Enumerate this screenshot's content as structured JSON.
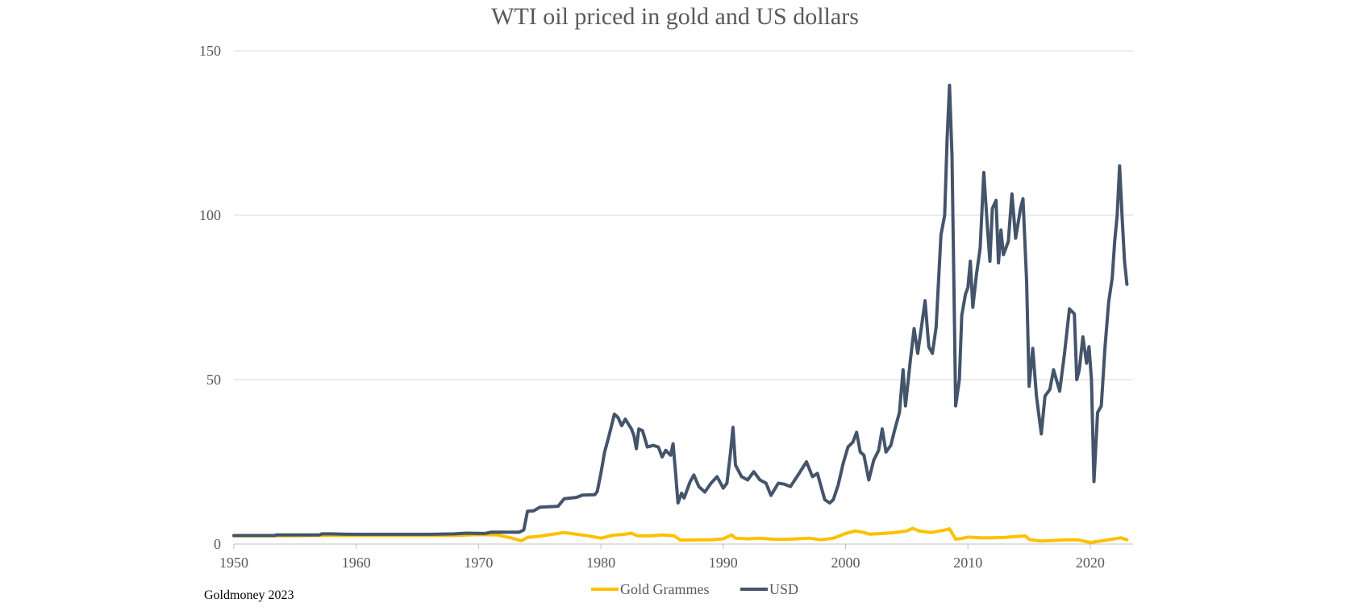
{
  "colors": {
    "usd": "#44546a",
    "gold": "#ffc000",
    "grid": "#d9d9d9",
    "text": "#595959"
  },
  "source_note": "Goldmoney 2023",
  "chart_data": {
    "type": "line",
    "title": "WTI oil priced in gold and US dollars",
    "xlabel": "",
    "ylabel": "",
    "xlim": [
      1950,
      2023.5
    ],
    "ylim": [
      0,
      150
    ],
    "x_ticks": [
      "1950",
      "1960",
      "1970",
      "1980",
      "1990",
      "2000",
      "2010",
      "2020"
    ],
    "y_ticks": [
      "0",
      "50",
      "100",
      "150"
    ],
    "grid": true,
    "legend": {
      "position": "bottom",
      "entries": [
        "Gold Grammes",
        "USD"
      ]
    },
    "series": [
      {
        "name": "Gold Grammes",
        "color": "#ffc000",
        "points": [
          [
            1950,
            2.5
          ],
          [
            1953.5,
            2.5
          ],
          [
            1957,
            2.6
          ],
          [
            1960,
            2.6
          ],
          [
            1965,
            2.6
          ],
          [
            1968,
            2.6
          ],
          [
            1970,
            2.9
          ],
          [
            1971.5,
            2.8
          ],
          [
            1972.5,
            2.0
          ],
          [
            1973.5,
            1.0
          ],
          [
            1974,
            2.0
          ],
          [
            1975,
            2.4
          ],
          [
            1976.5,
            3.2
          ],
          [
            1977,
            3.5
          ],
          [
            1978,
            3.0
          ],
          [
            1979,
            2.5
          ],
          [
            1980,
            1.8
          ],
          [
            1981,
            2.7
          ],
          [
            1982,
            3.0
          ],
          [
            1982.5,
            3.3
          ],
          [
            1983,
            2.5
          ],
          [
            1984,
            2.5
          ],
          [
            1985,
            2.8
          ],
          [
            1986,
            2.5
          ],
          [
            1986.5,
            1.2
          ],
          [
            1988,
            1.3
          ],
          [
            1989,
            1.3
          ],
          [
            1990,
            1.6
          ],
          [
            1990.7,
            2.8
          ],
          [
            1991,
            1.8
          ],
          [
            1992,
            1.6
          ],
          [
            1993,
            1.8
          ],
          [
            1994,
            1.5
          ],
          [
            1995,
            1.4
          ],
          [
            1996,
            1.6
          ],
          [
            1997,
            1.8
          ],
          [
            1998,
            1.3
          ],
          [
            1999,
            1.8
          ],
          [
            2000,
            3.2
          ],
          [
            2000.8,
            4.0
          ],
          [
            2001.5,
            3.5
          ],
          [
            2002,
            3.0
          ],
          [
            2003,
            3.2
          ],
          [
            2004,
            3.5
          ],
          [
            2005,
            4.0
          ],
          [
            2005.5,
            4.8
          ],
          [
            2006,
            4.0
          ],
          [
            2007,
            3.5
          ],
          [
            2008,
            4.2
          ],
          [
            2008.5,
            4.6
          ],
          [
            2009,
            1.5
          ],
          [
            2009.5,
            1.7
          ],
          [
            2010,
            2.1
          ],
          [
            2011,
            1.9
          ],
          [
            2012,
            1.9
          ],
          [
            2013,
            2.0
          ],
          [
            2014,
            2.3
          ],
          [
            2014.7,
            2.5
          ],
          [
            2015,
            1.4
          ],
          [
            2016,
            0.9
          ],
          [
            2017,
            1.1
          ],
          [
            2018,
            1.3
          ],
          [
            2019,
            1.3
          ],
          [
            2020,
            0.5
          ],
          [
            2021,
            1.0
          ],
          [
            2022,
            1.6
          ],
          [
            2022.5,
            1.9
          ],
          [
            2023,
            1.3
          ]
        ]
      },
      {
        "name": "USD",
        "color": "#44546a",
        "points": [
          [
            1950,
            2.6
          ],
          [
            1953.3,
            2.6
          ],
          [
            1953.5,
            2.8
          ],
          [
            1957,
            2.8
          ],
          [
            1957.2,
            3.1
          ],
          [
            1958,
            3.1
          ],
          [
            1959,
            3.0
          ],
          [
            1960,
            2.97
          ],
          [
            1966,
            2.97
          ],
          [
            1968,
            3.1
          ],
          [
            1969,
            3.3
          ],
          [
            1970.5,
            3.2
          ],
          [
            1971,
            3.6
          ],
          [
            1973.3,
            3.6
          ],
          [
            1973.7,
            4.3
          ],
          [
            1974,
            10.0
          ],
          [
            1974.5,
            10.1
          ],
          [
            1975,
            11.2
          ],
          [
            1976.5,
            11.5
          ],
          [
            1977,
            13.8
          ],
          [
            1978,
            14.2
          ],
          [
            1978.5,
            14.9
          ],
          [
            1979.5,
            15.0
          ],
          [
            1979.7,
            16.0
          ],
          [
            1980,
            21.5
          ],
          [
            1980.3,
            28.0
          ],
          [
            1980.6,
            32.0
          ],
          [
            1980.9,
            36.5
          ],
          [
            1981.1,
            39.5
          ],
          [
            1981.4,
            38.5
          ],
          [
            1981.7,
            36.0
          ],
          [
            1982,
            38.0
          ],
          [
            1982.5,
            35.0
          ],
          [
            1982.7,
            33.0
          ],
          [
            1982.9,
            29.0
          ],
          [
            1983.1,
            35.0
          ],
          [
            1983.4,
            34.5
          ],
          [
            1983.8,
            29.5
          ],
          [
            1984.3,
            30.0
          ],
          [
            1984.7,
            29.5
          ],
          [
            1985,
            26.5
          ],
          [
            1985.3,
            28.5
          ],
          [
            1985.7,
            27.0
          ],
          [
            1985.9,
            30.5
          ],
          [
            1986.1,
            22.0
          ],
          [
            1986.3,
            12.5
          ],
          [
            1986.6,
            15.5
          ],
          [
            1986.8,
            14.0
          ],
          [
            1987.3,
            19.0
          ],
          [
            1987.6,
            21.0
          ],
          [
            1988,
            17.5
          ],
          [
            1988.5,
            15.8
          ],
          [
            1989,
            18.5
          ],
          [
            1989.5,
            20.5
          ],
          [
            1990,
            17.0
          ],
          [
            1990.3,
            18.5
          ],
          [
            1990.6,
            28.0
          ],
          [
            1990.8,
            35.5
          ],
          [
            1991,
            24.0
          ],
          [
            1991.5,
            20.5
          ],
          [
            1992,
            19.5
          ],
          [
            1992.5,
            22.0
          ],
          [
            1993,
            19.5
          ],
          [
            1993.5,
            18.5
          ],
          [
            1993.9,
            14.8
          ],
          [
            1994.5,
            18.5
          ],
          [
            1995,
            18.2
          ],
          [
            1995.5,
            17.5
          ],
          [
            1996.2,
            21.5
          ],
          [
            1996.8,
            25.0
          ],
          [
            1997.3,
            20.5
          ],
          [
            1997.7,
            21.5
          ],
          [
            1998.3,
            13.5
          ],
          [
            1998.7,
            12.5
          ],
          [
            1999,
            13.5
          ],
          [
            1999.4,
            18.0
          ],
          [
            1999.8,
            24.5
          ],
          [
            2000.2,
            29.5
          ],
          [
            2000.6,
            31.0
          ],
          [
            2000.9,
            34.0
          ],
          [
            2001.2,
            28.0
          ],
          [
            2001.5,
            27.0
          ],
          [
            2001.9,
            19.5
          ],
          [
            2002.3,
            25.5
          ],
          [
            2002.7,
            28.5
          ],
          [
            2003,
            35.0
          ],
          [
            2003.3,
            28.0
          ],
          [
            2003.7,
            30.0
          ],
          [
            2004,
            34.5
          ],
          [
            2004.4,
            40.0
          ],
          [
            2004.7,
            53.0
          ],
          [
            2004.9,
            42.0
          ],
          [
            2005.3,
            56.0
          ],
          [
            2005.6,
            65.5
          ],
          [
            2005.9,
            58.0
          ],
          [
            2006.2,
            66.0
          ],
          [
            2006.5,
            74.0
          ],
          [
            2006.8,
            60.0
          ],
          [
            2007.1,
            58.0
          ],
          [
            2007.4,
            66.0
          ],
          [
            2007.8,
            94.0
          ],
          [
            2008.1,
            100.0
          ],
          [
            2008.3,
            123.0
          ],
          [
            2008.5,
            139.5
          ],
          [
            2008.7,
            118.0
          ],
          [
            2008.9,
            68.0
          ],
          [
            2009,
            42.0
          ],
          [
            2009.3,
            50.0
          ],
          [
            2009.5,
            69.5
          ],
          [
            2009.8,
            76.0
          ],
          [
            2010,
            78.0
          ],
          [
            2010.2,
            86.0
          ],
          [
            2010.4,
            72.0
          ],
          [
            2010.7,
            82.0
          ],
          [
            2011,
            90.0
          ],
          [
            2011.3,
            113.0
          ],
          [
            2011.6,
            96.0
          ],
          [
            2011.8,
            86.0
          ],
          [
            2012,
            102.0
          ],
          [
            2012.3,
            104.5
          ],
          [
            2012.5,
            85.5
          ],
          [
            2012.7,
            95.5
          ],
          [
            2012.9,
            88.0
          ],
          [
            2013.3,
            92.0
          ],
          [
            2013.6,
            106.5
          ],
          [
            2013.9,
            93.0
          ],
          [
            2014.3,
            102.0
          ],
          [
            2014.5,
            105.0
          ],
          [
            2014.8,
            80.0
          ],
          [
            2015,
            48.0
          ],
          [
            2015.3,
            59.5
          ],
          [
            2015.6,
            45.0
          ],
          [
            2016,
            33.5
          ],
          [
            2016.3,
            45.0
          ],
          [
            2016.7,
            47.0
          ],
          [
            2017,
            53.0
          ],
          [
            2017.5,
            46.5
          ],
          [
            2017.9,
            58.0
          ],
          [
            2018.3,
            71.5
          ],
          [
            2018.7,
            70.0
          ],
          [
            2018.9,
            50.0
          ],
          [
            2019.1,
            53.0
          ],
          [
            2019.4,
            63.0
          ],
          [
            2019.7,
            55.0
          ],
          [
            2019.9,
            60.0
          ],
          [
            2020.1,
            50.0
          ],
          [
            2020.3,
            19.0
          ],
          [
            2020.6,
            40.0
          ],
          [
            2020.9,
            42.0
          ],
          [
            2021.2,
            59.5
          ],
          [
            2021.5,
            73.5
          ],
          [
            2021.8,
            81.0
          ],
          [
            2022,
            92.0
          ],
          [
            2022.2,
            100.0
          ],
          [
            2022.4,
            115.0
          ],
          [
            2022.6,
            100.0
          ],
          [
            2022.8,
            86.0
          ],
          [
            2023,
            79.0
          ]
        ]
      }
    ]
  }
}
